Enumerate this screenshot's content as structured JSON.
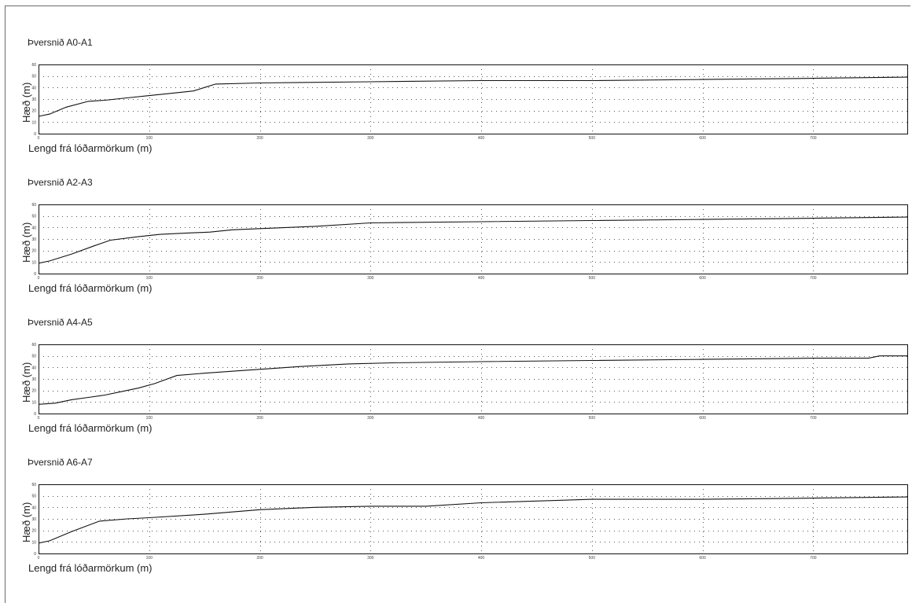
{
  "chart_data": [
    {
      "type": "line",
      "title": "Þversnið A0-A1",
      "xlabel": "Lengd frá lóðarmörkum (m)",
      "ylabel": "Hæð (m)",
      "xlim": [
        0,
        785
      ],
      "ylim": [
        0,
        60
      ],
      "x_ticks": [
        0,
        100,
        200,
        300,
        400,
        500,
        600,
        700
      ],
      "y_ticks": [
        0,
        10,
        20,
        30,
        40,
        50,
        60
      ],
      "grid": true,
      "series": [
        {
          "x": [
            0,
            10,
            25,
            45,
            60,
            80,
            100,
            120,
            140,
            150,
            160,
            200,
            300,
            400,
            500,
            600,
            700,
            785
          ],
          "y": [
            15,
            17,
            23,
            28,
            29,
            31,
            33,
            35,
            37,
            40,
            43,
            44,
            45,
            46,
            46,
            47,
            48,
            49
          ]
        }
      ]
    },
    {
      "type": "line",
      "title": "Þversnið A2-A3",
      "xlabel": "Lengd frá lóðarmörkum (m)",
      "ylabel": "Hæð (m)",
      "xlim": [
        0,
        785
      ],
      "ylim": [
        0,
        60
      ],
      "x_ticks": [
        0,
        100,
        200,
        300,
        400,
        500,
        600,
        700
      ],
      "y_ticks": [
        0,
        10,
        20,
        30,
        40,
        50,
        60
      ],
      "grid": true,
      "series": [
        {
          "x": [
            0,
            10,
            30,
            50,
            65,
            90,
            110,
            130,
            155,
            175,
            200,
            250,
            300,
            400,
            500,
            600,
            700,
            785
          ],
          "y": [
            9,
            11,
            17,
            24,
            29,
            32,
            34,
            35,
            36,
            38,
            39,
            41,
            44,
            45,
            46,
            47,
            48,
            49
          ]
        }
      ]
    },
    {
      "type": "line",
      "title": "Þversnið A4-A5",
      "xlabel": "Lengd frá lóðarmörkum (m)",
      "ylabel": "Hæð (m)",
      "xlim": [
        0,
        785
      ],
      "ylim": [
        0,
        60
      ],
      "x_ticks": [
        0,
        100,
        200,
        300,
        400,
        500,
        600,
        700
      ],
      "y_ticks": [
        0,
        10,
        20,
        30,
        40,
        50,
        60
      ],
      "grid": true,
      "series": [
        {
          "x": [
            0,
            15,
            30,
            45,
            60,
            75,
            90,
            105,
            125,
            150,
            180,
            210,
            240,
            280,
            320,
            400,
            500,
            600,
            700,
            750,
            760,
            785
          ],
          "y": [
            8,
            9,
            12,
            14,
            16,
            19,
            22,
            26,
            33,
            35,
            37,
            39,
            41,
            43,
            44,
            45,
            46,
            47,
            48,
            48,
            50,
            50
          ]
        }
      ]
    },
    {
      "type": "line",
      "title": "Þversnið A6-A7",
      "xlabel": "Lengd frá lóðarmörkum (m)",
      "ylabel": "Hæð (m)",
      "xlim": [
        0,
        785
      ],
      "ylim": [
        0,
        60
      ],
      "x_ticks": [
        0,
        100,
        200,
        300,
        400,
        500,
        600,
        700
      ],
      "y_ticks": [
        0,
        10,
        20,
        30,
        40,
        50,
        60
      ],
      "grid": true,
      "series": [
        {
          "x": [
            0,
            10,
            30,
            55,
            80,
            100,
            150,
            200,
            250,
            300,
            350,
            400,
            500,
            600,
            700,
            785
          ],
          "y": [
            9,
            11,
            19,
            28,
            30,
            31,
            34,
            38,
            40,
            41,
            41,
            44,
            47,
            47,
            48,
            49
          ]
        }
      ]
    }
  ]
}
